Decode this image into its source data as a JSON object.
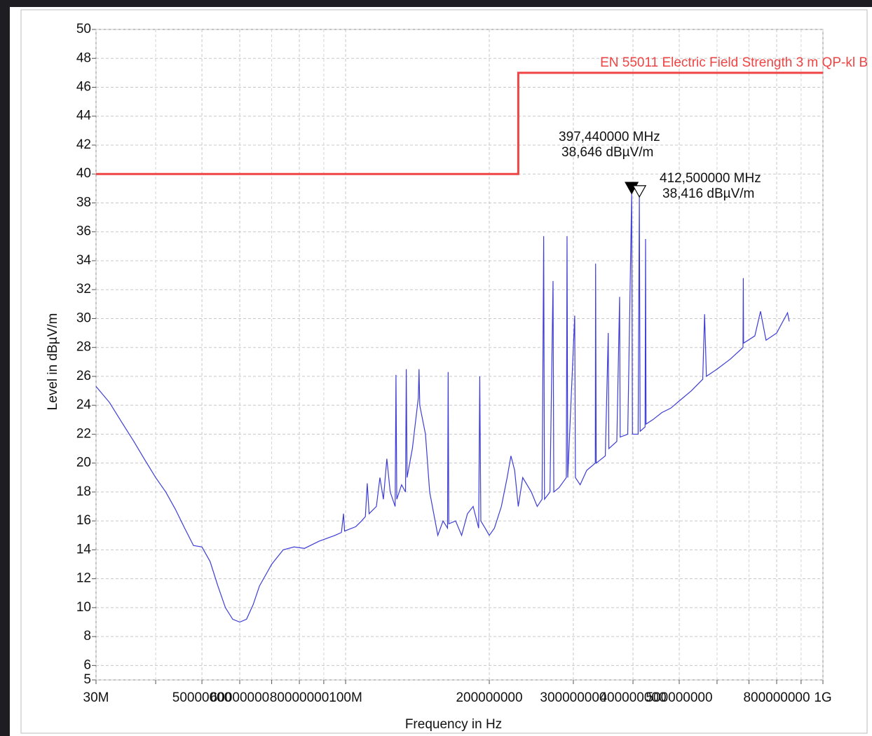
{
  "chart_data": {
    "type": "line",
    "x_label": "Frequency in Hz",
    "y_label": "Level in dBµV/m",
    "xlim": [
      30000000.0,
      1000000000.0
    ],
    "ylim": [
      5,
      50
    ],
    "x_log": true,
    "grid": true,
    "xticks": [
      {
        "value": 30000000.0,
        "label": "30M"
      },
      50000000.0,
      60000000.0,
      80000000.0,
      {
        "value": 100000000.0,
        "label": "100M"
      },
      200000000.0,
      300000000.0,
      400000000.0,
      500000000.0,
      800000000.0,
      {
        "value": 1000000000.0,
        "label": "1G"
      }
    ],
    "xticks_minor": [
      40000000.0,
      70000000.0,
      90000000.0,
      600000000.0,
      700000000.0,
      900000000.0
    ],
    "yticks": [
      5,
      6,
      8,
      10,
      12,
      14,
      16,
      18,
      20,
      22,
      24,
      26,
      28,
      30,
      32,
      34,
      36,
      38,
      40,
      42,
      44,
      46,
      48,
      50
    ],
    "series": [
      {
        "name": "EN 55011 Electric Field Strength 3 m QP-kl B",
        "color": "#ee4444",
        "x": [
          30000000.0,
          230000000.0,
          230000000.0,
          1000000000.0
        ],
        "values": [
          40,
          40,
          47,
          47
        ]
      },
      {
        "color": "#3d3dd6",
        "x": [
          30000000.0,
          32000000.0,
          34000000.0,
          36000000.0,
          38000000.0,
          40000000.0,
          42000000.0,
          44000000.0,
          46000000.0,
          48000000.0,
          50000000.0,
          52000000.0,
          54000000.0,
          56000000.0,
          58000000.0,
          60000000.0,
          62000000.0,
          64000000.0,
          66000000.0,
          70000000.0,
          74000000.0,
          78000000.0,
          82000000.0,
          88000000.0,
          95000000.0,
          98000000.0,
          99000000.0,
          99500000.0,
          105000000.0,
          108000000.0,
          110000000.0,
          111000000.0,
          112000000.0,
          116000000.0,
          118000000.0,
          120000000.0,
          122000000.0,
          124000000.0,
          127000000.0,
          127500000.0,
          128000000.0,
          131000000.0,
          133500000.0,
          134000000.0,
          134500000.0,
          138000000.0,
          142000000.0,
          142500000.0,
          143000000.0,
          147000000.0,
          150000000.0,
          154000000.0,
          156000000.0,
          160000000.0,
          163500000.0,
          164000000.0,
          164500000.0,
          170000000.0,
          175000000.0,
          180000000.0,
          185000000.0,
          190000000.0,
          191000000.0,
          192000000.0,
          196000000.0,
          200000000.0,
          205000000.0,
          212000000.0,
          218000000.0,
          222000000.0,
          226000000.0,
          230000000.0,
          235000000.0,
          245000000.0,
          252000000.0,
          258000000.0,
          260000000.0,
          261000000.0,
          268000000.0,
          272000000.0,
          273000000.0,
          280000000.0,
          290000000.0,
          291000000.0,
          292000000.0,
          302000000.0,
          303000000.0,
          310000000.0,
          320000000.0,
          333500000.0,
          334000000.0,
          335000000.0,
          350000000.0,
          355000000.0,
          356000000.0,
          370000000.0,
          375000000.0,
          376000000.0,
          390000000.0,
          397440000.0,
          399000000.0,
          410000000.0,
          412500000.0,
          414000000.0,
          424000000.0,
          425000000.0,
          426000000.0,
          440000000.0,
          460000000.0,
          480000000.0,
          500000000.0,
          530000000.0,
          560000000.0,
          565000000.0,
          570000000.0,
          600000000.0,
          640000000.0,
          680000000.0,
          681000000.0,
          682000000.0,
          720000000.0,
          740000000.0,
          760000000.0,
          800000000.0,
          843000000.0,
          850000000.0
        ],
        "values": [
          25.3,
          24.2,
          22.8,
          21.5,
          20.2,
          19,
          18,
          16.8,
          15.5,
          14.3,
          14.2,
          13.2,
          11.5,
          10,
          9.2,
          9,
          9.2,
          10.2,
          11.5,
          13,
          14,
          14.2,
          14.1,
          14.6,
          15,
          15.2,
          16.5,
          15.3,
          15.6,
          16,
          16.3,
          18.6,
          16.5,
          17,
          19,
          17.5,
          20.3,
          18,
          17,
          26.1,
          17.5,
          18.5,
          18,
          26.5,
          19,
          21,
          24.5,
          26.5,
          24,
          22,
          18,
          16,
          15,
          16,
          15.5,
          26.3,
          15.8,
          16,
          15,
          16.5,
          17,
          15.5,
          26,
          16,
          15.5,
          15,
          15.5,
          17,
          19,
          20.5,
          19.5,
          17,
          19,
          18,
          17,
          17.5,
          35.7,
          17.5,
          18,
          32.6,
          18,
          18.3,
          19,
          35.7,
          19,
          30.2,
          19,
          18.5,
          19.5,
          20,
          33.8,
          20,
          20.5,
          29,
          21,
          21.5,
          31.5,
          21.8,
          22,
          38.646,
          22,
          22,
          38.416,
          22.2,
          22.5,
          35.5,
          22.7,
          23,
          23.5,
          23.8,
          24.3,
          25,
          25.8,
          30.3,
          26,
          26.5,
          27.2,
          28,
          32.8,
          28.3,
          28.8,
          30.5,
          28.5,
          29,
          30.4,
          29.8
        ]
      }
    ],
    "markers": [
      {
        "x": 397440000.0,
        "y": 38.646,
        "filled": true,
        "label": [
          "397,440000 MHz",
          "38,646 dBµV/m"
        ]
      },
      {
        "x": 412500000.0,
        "y": 38.416,
        "filled": false,
        "label": [
          "412,500000 MHz",
          "38,416 dBµV/m"
        ]
      }
    ]
  }
}
